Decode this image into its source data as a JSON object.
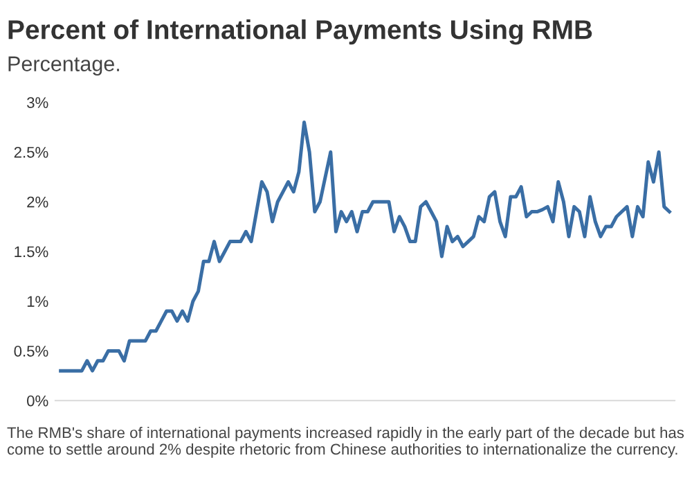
{
  "chart_data": {
    "type": "line",
    "title": "Percent of International Payments Using RMB",
    "subtitle": "Percentage.",
    "annotations": [
      "The RMB's share of international payments increased rapidly in the early part of the decade but has come to settle around 2% despite rhetoric from Chinese authorities to internationalize the currency."
    ],
    "categories": [
      null,
      null,
      null,
      null,
      null,
      null,
      null,
      null,
      null,
      null,
      null,
      null,
      null,
      null,
      null,
      null,
      null,
      null,
      null,
      null,
      null,
      null,
      null,
      null,
      null,
      null,
      null,
      null,
      null,
      null,
      null,
      null,
      null,
      null,
      null,
      null,
      null,
      null,
      null,
      null,
      null,
      null,
      null,
      null,
      null,
      null,
      null,
      null,
      null,
      null,
      null,
      null,
      null,
      null,
      null,
      null,
      null,
      null,
      null,
      null,
      null,
      null,
      null,
      null,
      null,
      null,
      null,
      null,
      null,
      null,
      null,
      null,
      null,
      null,
      null,
      null,
      null,
      null,
      null,
      null,
      null,
      null,
      null,
      null,
      null,
      null,
      null,
      null,
      null,
      null,
      null,
      null,
      null,
      null,
      null,
      null,
      null,
      null,
      null,
      null,
      null,
      null,
      null,
      null,
      null,
      null,
      null,
      null,
      null,
      null,
      null,
      null,
      null,
      null,
      null,
      null
    ],
    "series": [
      {
        "color": "#3a6ea5",
        "values": [
          0.3,
          0.3,
          0.3,
          0.3,
          0.3,
          0.4,
          0.3,
          0.4,
          0.4,
          0.5,
          0.5,
          0.5,
          0.4,
          0.6,
          0.6,
          0.6,
          0.6,
          0.7,
          0.7,
          0.8,
          0.9,
          0.9,
          0.8,
          0.9,
          0.8,
          1.0,
          1.1,
          1.4,
          1.4,
          1.6,
          1.4,
          1.5,
          1.6,
          1.6,
          1.6,
          1.7,
          1.6,
          1.9,
          2.2,
          2.1,
          1.8,
          2.0,
          2.1,
          2.2,
          2.1,
          2.3,
          2.8,
          2.5,
          1.9,
          2.0,
          2.25,
          2.5,
          1.7,
          1.9,
          1.8,
          1.9,
          1.7,
          1.9,
          1.9,
          2.0,
          2.0,
          2.0,
          2.0,
          1.7,
          1.85,
          1.75,
          1.6,
          1.6,
          1.95,
          2.0,
          1.9,
          1.8,
          1.45,
          1.75,
          1.6,
          1.65,
          1.55,
          1.6,
          1.65,
          1.85,
          1.8,
          2.05,
          2.1,
          1.8,
          1.65,
          2.05,
          2.05,
          2.15,
          1.85,
          1.9,
          1.9,
          1.92,
          1.95,
          1.8,
          2.2,
          2.0,
          1.65,
          1.95,
          1.9,
          1.65,
          2.05,
          1.8,
          1.65,
          1.75,
          1.75,
          1.85,
          1.9,
          1.95,
          1.65,
          1.95,
          1.85,
          2.4,
          2.2,
          2.5,
          1.95,
          1.9
        ]
      }
    ],
    "ylim": [
      0,
      3
    ],
    "yticks": [
      {
        "value": 0,
        "label": "0%"
      },
      {
        "value": 0.5,
        "label": "0.5%"
      },
      {
        "value": 1,
        "label": "1%"
      },
      {
        "value": 1.5,
        "label": "1.5%"
      },
      {
        "value": 2,
        "label": "2%"
      },
      {
        "value": 2.5,
        "label": "2.5%"
      },
      {
        "value": 3,
        "label": "3%"
      }
    ],
    "grid": false,
    "marker": "none",
    "line_style": "solid"
  }
}
